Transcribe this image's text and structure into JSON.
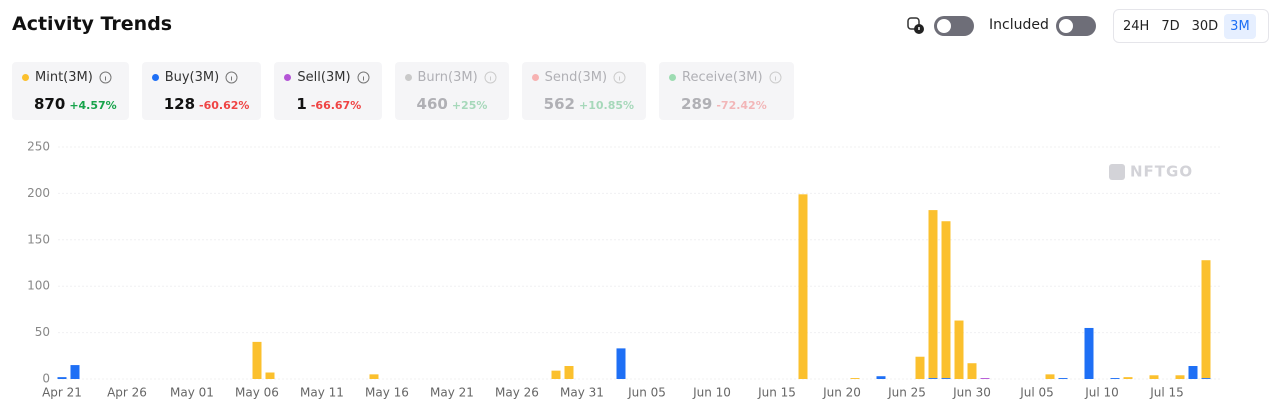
{
  "header": {
    "title": "Activity Trends",
    "toggle_label": "Included",
    "ranges": [
      "24H",
      "7D",
      "30D",
      "3M"
    ],
    "selected_range": 3
  },
  "stats": [
    {
      "name": "Mint(3M)",
      "total": 870,
      "change": "+4.57%",
      "trend": "up",
      "color": "#fbc02d",
      "enabled": true
    },
    {
      "name": "Buy(3M)",
      "total": 128,
      "change": "-60.62%",
      "trend": "down",
      "color": "#1e6ff5",
      "enabled": true
    },
    {
      "name": "Sell(3M)",
      "total": 1,
      "change": "-66.67%",
      "trend": "down",
      "color": "#b455d6",
      "enabled": true
    },
    {
      "name": "Burn(3M)",
      "total": 460,
      "change": "+25%",
      "trend": "up",
      "color": "#c9c9c9",
      "enabled": false
    },
    {
      "name": "Send(3M)",
      "total": 562,
      "change": "+10.85%",
      "trend": "up",
      "color": "#f7b2b2",
      "enabled": false
    },
    {
      "name": "Receive(3M)",
      "total": 289,
      "change": "-72.42%",
      "trend": "down",
      "color": "#9ddcb2",
      "enabled": false
    }
  ],
  "chart_data": {
    "type": "stacked_bar",
    "watermark": "NFTGO",
    "categories": [
      "Apr 21",
      null,
      null,
      null,
      null,
      "Apr 26",
      null,
      null,
      null,
      null,
      "May 01",
      null,
      null,
      null,
      null,
      "May 06",
      null,
      null,
      null,
      null,
      "May 11",
      null,
      null,
      null,
      null,
      "May 16",
      null,
      null,
      null,
      null,
      "May 21",
      null,
      null,
      null,
      null,
      "May 26",
      null,
      null,
      null,
      null,
      "May 31",
      null,
      null,
      null,
      null,
      "Jun 05",
      null,
      null,
      null,
      null,
      "Jun 10",
      null,
      null,
      null,
      null,
      "Jun 15",
      null,
      null,
      null,
      null,
      "Jun 20",
      null,
      null,
      null,
      null,
      "Jun 25",
      null,
      null,
      null,
      null,
      "Jun 30",
      null,
      null,
      null,
      null,
      "Jul 05",
      null,
      null,
      null,
      null,
      "Jul 10",
      null,
      null,
      null,
      null,
      "Jul 15",
      null,
      null,
      null
    ],
    "series": [
      {
        "color": "#1e6ff5",
        "values": [
          2,
          15,
          0,
          0,
          0,
          0,
          0,
          0,
          0,
          0,
          0,
          0,
          0,
          0,
          0,
          0,
          0,
          0,
          0,
          0,
          0,
          0,
          0,
          0,
          0,
          0,
          0,
          0,
          0,
          0,
          0,
          0,
          0,
          0,
          0,
          0,
          0,
          0,
          0,
          0,
          0,
          0,
          0,
          33,
          0,
          0,
          0,
          0,
          0,
          0,
          0,
          0,
          0,
          0,
          0,
          0,
          0,
          0,
          0,
          0,
          0,
          0,
          0,
          3,
          0,
          0,
          0,
          1,
          1,
          0,
          0,
          0,
          0,
          0,
          0,
          0,
          0,
          1,
          0,
          55,
          0,
          1,
          0,
          0,
          0,
          0,
          0,
          14,
          1
        ]
      },
      {
        "color": "#b455d6",
        "values": [
          0,
          0,
          0,
          0,
          0,
          0,
          0,
          0,
          0,
          0,
          0,
          0,
          0,
          0,
          0,
          0,
          0,
          0,
          0,
          0,
          0,
          0,
          0,
          0,
          0,
          0,
          0,
          0,
          0,
          0,
          0,
          0,
          0,
          0,
          0,
          0,
          0,
          0,
          0,
          0,
          0,
          0,
          0,
          0,
          0,
          0,
          0,
          0,
          0,
          0,
          0,
          0,
          0,
          0,
          0,
          0,
          0,
          0,
          0,
          0,
          0,
          0,
          0,
          0,
          0,
          0,
          0,
          0,
          0,
          0,
          0,
          1,
          0,
          0,
          0,
          0,
          0,
          0,
          0,
          0,
          0,
          0,
          0,
          0,
          0,
          0,
          0,
          0,
          0
        ]
      },
      {
        "color": "#fbc02d",
        "values": [
          0,
          0,
          0,
          0,
          0,
          0,
          0,
          0,
          0,
          0,
          0,
          0,
          0,
          0,
          0,
          40,
          7,
          0,
          0,
          0,
          0,
          0,
          0,
          0,
          5,
          0,
          0,
          0,
          0,
          0,
          0,
          0,
          0,
          0,
          0,
          0,
          0,
          0,
          9,
          14,
          0,
          0,
          0,
          0,
          0,
          0,
          0,
          0,
          0,
          0,
          0,
          0,
          0,
          0,
          0,
          0,
          0,
          199,
          0,
          0,
          0,
          1,
          0,
          0,
          0,
          0,
          24,
          181,
          169,
          63,
          17,
          0,
          0,
          0,
          0,
          0,
          5,
          0,
          0,
          0,
          0,
          0,
          2,
          0,
          4,
          0,
          4,
          0,
          127
        ]
      }
    ],
    "ylim": [
      0,
      250
    ],
    "yticks": [
      0,
      50,
      100,
      150,
      200,
      250
    ],
    "grid": true
  }
}
